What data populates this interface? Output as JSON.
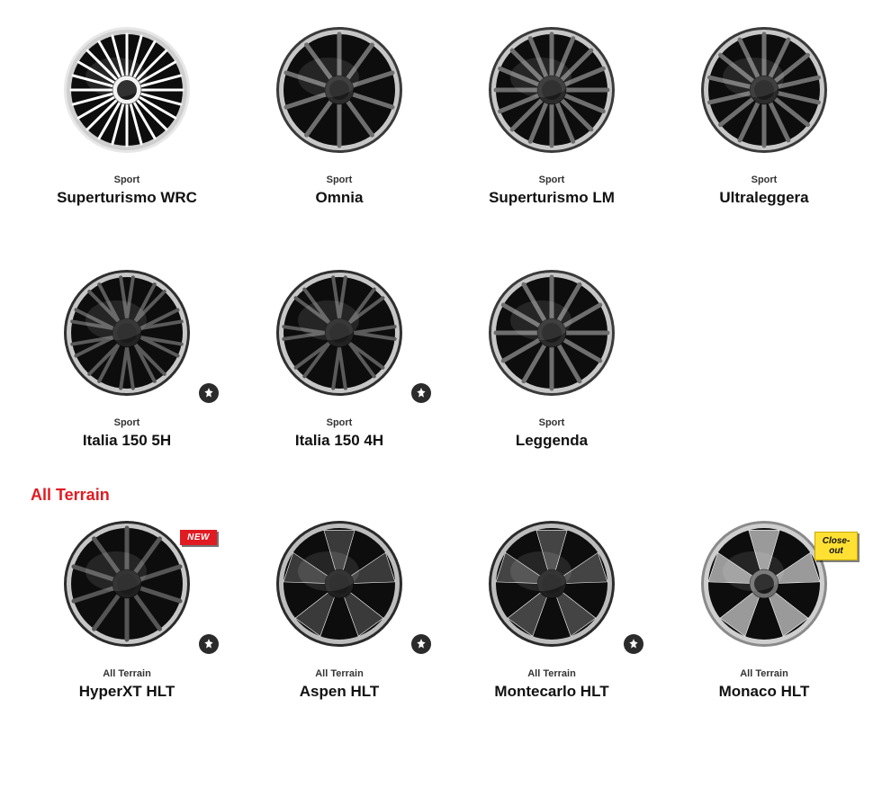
{
  "colors": {
    "section_title": "#e11b22",
    "text": "#1a1a1a",
    "badge_new_bg": "#e11b22",
    "badge_new_text": "#ffffff",
    "badge_closeout_bg": "#ffe033",
    "badge_closeout_border": "#c9a800",
    "badge_star_bg": "#2b2b2b"
  },
  "labels": {
    "new": "NEW",
    "closeout": "Close-out"
  },
  "sections": [
    {
      "title": "",
      "title_color": "",
      "products": [
        {
          "category": "Sport",
          "name": "Superturismo WRC",
          "wheel": {
            "style": "multispoke",
            "spokes": 24,
            "outer": "#e7e7e7",
            "rim": "#cfcfcf",
            "spoke": "#ffffff",
            "hub": "#f2f2f2"
          },
          "badges": []
        },
        {
          "category": "Sport",
          "name": "Omnia",
          "wheel": {
            "style": "multispoke",
            "spokes": 10,
            "outer": "#3a3a3a",
            "rim": "#c7c7c7",
            "spoke": "#6e6e6e",
            "hub": "#2b2b2b"
          },
          "badges": []
        },
        {
          "category": "Sport",
          "name": "Superturismo LM",
          "wheel": {
            "style": "multispoke",
            "spokes": 16,
            "outer": "#3a3a3a",
            "rim": "#c7c7c7",
            "spoke": "#6e6e6e",
            "hub": "#2b2b2b"
          },
          "badges": []
        },
        {
          "category": "Sport",
          "name": "Ultraleggera",
          "wheel": {
            "style": "multispoke",
            "spokes": 14,
            "outer": "#3a3a3a",
            "rim": "#c7c7c7",
            "spoke": "#6e6e6e",
            "hub": "#2b2b2b"
          },
          "badges": []
        },
        {
          "category": "Sport",
          "name": "Italia 150 5H",
          "wheel": {
            "style": "split",
            "spokes": 10,
            "outer": "#2f2f2f",
            "rim": "#c7c7c7",
            "spoke": "#5a5a5a",
            "hub": "#222222"
          },
          "badges": [
            "star"
          ]
        },
        {
          "category": "Sport",
          "name": "Italia 150 4H",
          "wheel": {
            "style": "split",
            "spokes": 8,
            "outer": "#2f2f2f",
            "rim": "#c7c7c7",
            "spoke": "#5a5a5a",
            "hub": "#222222"
          },
          "badges": [
            "star"
          ]
        },
        {
          "category": "Sport",
          "name": "Leggenda",
          "wheel": {
            "style": "multispoke",
            "spokes": 12,
            "outer": "#3a3a3a",
            "rim": "#c7c7c7",
            "spoke": "#6e6e6e",
            "hub": "#2b2b2b"
          },
          "badges": []
        }
      ]
    },
    {
      "title": "All Terrain",
      "title_color": "#e11b22",
      "products": [
        {
          "category": "All Terrain",
          "name": "HyperXT HLT",
          "wheel": {
            "style": "multispoke",
            "spokes": 10,
            "outer": "#2b2b2b",
            "rim": "#c7c7c7",
            "spoke": "#555555",
            "hub": "#1f1f1f"
          },
          "badges": [
            "new",
            "star"
          ]
        },
        {
          "category": "All Terrain",
          "name": "Aspen HLT",
          "wheel": {
            "style": "fivespoke",
            "spokes": 5,
            "outer": "#2b2b2b",
            "rim": "#bdbdbd",
            "spoke": "#3a3a3a",
            "hub": "#1f1f1f"
          },
          "badges": [
            "star"
          ]
        },
        {
          "category": "All Terrain",
          "name": "Montecarlo HLT",
          "wheel": {
            "style": "fivespoke",
            "spokes": 5,
            "outer": "#2b2b2b",
            "rim": "#bdbdbd",
            "spoke": "#444444",
            "hub": "#1f1f1f"
          },
          "badges": [
            "star"
          ]
        },
        {
          "category": "All Terrain",
          "name": "Monaco HLT",
          "wheel": {
            "style": "fivespoke",
            "spokes": 5,
            "outer": "#8a8a8a",
            "rim": "#cfcfcf",
            "spoke": "#9a9a9a",
            "hub": "#6e6e6e"
          },
          "badges": [
            "closeout"
          ]
        }
      ]
    }
  ]
}
